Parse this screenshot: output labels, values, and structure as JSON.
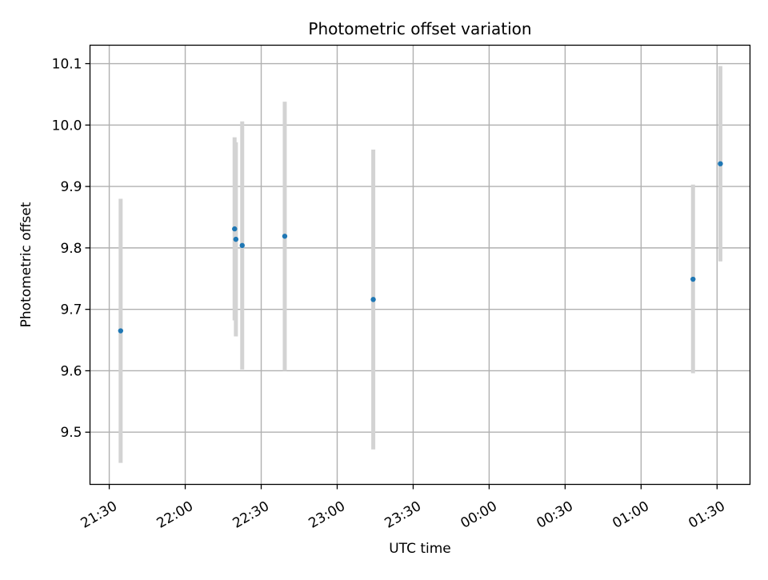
{
  "chart_data": {
    "type": "scatter",
    "title": "Photometric offset variation",
    "xlabel": "UTC time",
    "ylabel": "Photometric offset",
    "x_tick_labels": [
      "21:30",
      "22:00",
      "22:30",
      "23:00",
      "23:30",
      "00:00",
      "00:30",
      "01:00",
      "01:30"
    ],
    "y_tick_labels": [
      "9.5",
      "9.6",
      "9.7",
      "9.8",
      "9.9",
      "10.0",
      "10.1"
    ],
    "x_ticks_minutes": [
      0,
      30,
      60,
      90,
      120,
      150,
      180,
      210,
      240
    ],
    "y_ticks": [
      9.5,
      9.6,
      9.7,
      9.8,
      9.9,
      10.0,
      10.1
    ],
    "xlim_minutes": [
      -7.6,
      253.0
    ],
    "ylim": [
      9.415,
      10.13
    ],
    "x_axis_note": "minutes after 21:30 UTC",
    "grid": true,
    "marker_color": "#1f77b4",
    "errorbar_color": "#d3d3d3",
    "points": [
      {
        "time": "21:34:30",
        "t": 4.5,
        "y": 9.665,
        "ylow": 9.45,
        "yhigh": 9.88
      },
      {
        "time": "22:19:30",
        "t": 49.5,
        "y": 9.831,
        "ylow": 9.682,
        "yhigh": 9.98
      },
      {
        "time": "22:20:00",
        "t": 50.0,
        "y": 9.814,
        "ylow": 9.656,
        "yhigh": 9.972
      },
      {
        "time": "22:22:30",
        "t": 52.5,
        "y": 9.804,
        "ylow": 9.602,
        "yhigh": 10.006
      },
      {
        "time": "22:39:20",
        "t": 69.3,
        "y": 9.819,
        "ylow": 9.6,
        "yhigh": 10.038
      },
      {
        "time": "23:14:15",
        "t": 104.25,
        "y": 9.716,
        "ylow": 9.472,
        "yhigh": 9.96
      },
      {
        "time": "01:20:30",
        "t": 230.5,
        "y": 9.749,
        "ylow": 9.596,
        "yhigh": 9.903
      },
      {
        "time": "01:31:20",
        "t": 241.3,
        "y": 9.937,
        "ylow": 9.778,
        "yhigh": 10.096
      }
    ]
  }
}
